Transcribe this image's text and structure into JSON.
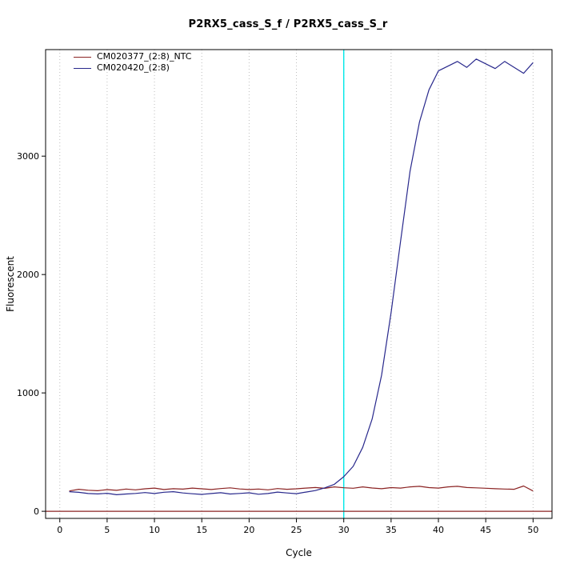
{
  "chart_data": {
    "type": "line",
    "title": "P2RX5_cass_S_f / P2RX5_cass_S_r",
    "xlabel": "Cycle",
    "ylabel": "Fluorescent",
    "xlim": [
      -1.5,
      52
    ],
    "ylim": [
      -60,
      3900
    ],
    "x_ticks": [
      0,
      5,
      10,
      15,
      20,
      25,
      30,
      35,
      40,
      45,
      50
    ],
    "y_ticks": [
      0,
      1000,
      2000,
      3000
    ],
    "gridlines": {
      "style": "vertical-dotted",
      "color": "#bdbdbd"
    },
    "threshold_line": {
      "x": 30,
      "color": "#00e8e8"
    },
    "zero_line": {
      "y": 0,
      "color": "#8b2323"
    },
    "legend_position": "topleft",
    "series": [
      {
        "name": "CM020377_(2:8)_NTC",
        "color": "#8b2323",
        "x_start": 1,
        "values": [
          172,
          186,
          178,
          174,
          183,
          177,
          188,
          181,
          190,
          196,
          184,
          191,
          187,
          196,
          190,
          184,
          192,
          198,
          189,
          184,
          188,
          181,
          192,
          186,
          190,
          196,
          201,
          194,
          206,
          199,
          195,
          206,
          197,
          191,
          200,
          196,
          206,
          211,
          200,
          196,
          206,
          211,
          201,
          198,
          195,
          191,
          188,
          186,
          214,
          172
        ]
      },
      {
        "name": "CM020420_(2:8)",
        "color": "#28288c",
        "x_start": 1,
        "values": [
          166,
          160,
          150,
          147,
          152,
          140,
          146,
          151,
          158,
          150,
          161,
          166,
          155,
          148,
          143,
          150,
          157,
          146,
          151,
          156,
          144,
          150,
          162,
          155,
          149,
          162,
          175,
          198,
          228,
          292,
          380,
          540,
          780,
          1150,
          1680,
          2280,
          2870,
          3290,
          3560,
          3720,
          3760,
          3800,
          3750,
          3820,
          3780,
          3740,
          3800,
          3750,
          3700,
          3790
        ]
      }
    ]
  }
}
